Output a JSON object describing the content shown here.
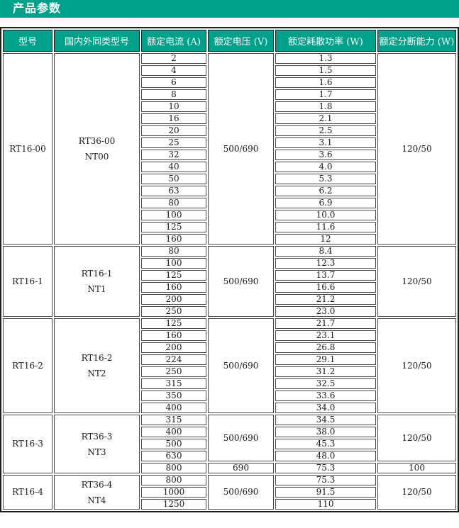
{
  "title": "产品参数",
  "colors": {
    "accent_teal": "#00a18a",
    "header_text": "#ffffff",
    "outer_border": "#1f1f1f",
    "cell_border": "#4a4a4a"
  },
  "table": {
    "headers": [
      "型号",
      "国内外同类型号",
      "额定电流 (A)",
      "额定电压 (V)",
      "额定耗散功率 (W)",
      "额定分断能力 (W)"
    ],
    "groups": [
      {
        "model": "RT16-00",
        "equivalent": [
          "RT36-00",
          "NT00"
        ],
        "rows": [
          {
            "current": "2",
            "power": "1.3"
          },
          {
            "current": "4",
            "power": "1.5"
          },
          {
            "current": "6",
            "power": "1.6"
          },
          {
            "current": "8",
            "power": "1.7"
          },
          {
            "current": "10",
            "power": "1.8"
          },
          {
            "current": "16",
            "power": "2.1"
          },
          {
            "current": "20",
            "power": "2.5"
          },
          {
            "current": "25",
            "power": "3.1"
          },
          {
            "current": "32",
            "power": "3.6"
          },
          {
            "current": "40",
            "power": "4.0"
          },
          {
            "current": "50",
            "power": "5.3"
          },
          {
            "current": "63",
            "power": "6.2"
          },
          {
            "current": "80",
            "power": "6.9"
          },
          {
            "current": "100",
            "power": "10.0"
          },
          {
            "current": "125",
            "power": "11.6"
          },
          {
            "current": "160",
            "power": "12"
          }
        ],
        "voltage_spans": [
          {
            "rows": 16,
            "value": "500/690"
          }
        ],
        "breaking_spans": [
          {
            "rows": 16,
            "value": "120/50"
          }
        ]
      },
      {
        "model": "RT16-1",
        "equivalent": [
          "RT16-1",
          "NT1"
        ],
        "rows": [
          {
            "current": "80",
            "power": "8.4"
          },
          {
            "current": "100",
            "power": "12.3"
          },
          {
            "current": "125",
            "power": "13.7"
          },
          {
            "current": "160",
            "power": "16.6"
          },
          {
            "current": "200",
            "power": "21.2"
          },
          {
            "current": "250",
            "power": "23.0"
          }
        ],
        "voltage_spans": [
          {
            "rows": 6,
            "value": "500/690"
          }
        ],
        "breaking_spans": [
          {
            "rows": 6,
            "value": "120/50"
          }
        ]
      },
      {
        "model": "RT16-2",
        "equivalent": [
          "RT16-2",
          "NT2"
        ],
        "rows": [
          {
            "current": "125",
            "power": "21.7"
          },
          {
            "current": "160",
            "power": "23.1"
          },
          {
            "current": "200",
            "power": "26.8"
          },
          {
            "current": "224",
            "power": "29.1"
          },
          {
            "current": "250",
            "power": "31.2"
          },
          {
            "current": "315",
            "power": "32.5"
          },
          {
            "current": "350",
            "power": "33.6"
          },
          {
            "current": "400",
            "power": "34.0"
          }
        ],
        "voltage_spans": [
          {
            "rows": 8,
            "value": "500/690"
          }
        ],
        "breaking_spans": [
          {
            "rows": 8,
            "value": "120/50"
          }
        ]
      },
      {
        "model": "RT16-3",
        "equivalent": [
          "RT36-3",
          "NT3"
        ],
        "rows": [
          {
            "current": "315",
            "power": "34.5"
          },
          {
            "current": "400",
            "power": "38.0"
          },
          {
            "current": "500",
            "power": "45.3"
          },
          {
            "current": "630",
            "power": "48.0"
          },
          {
            "current": "800",
            "power": "75.3"
          }
        ],
        "voltage_spans": [
          {
            "rows": 4,
            "value": "500/690"
          },
          {
            "rows": 1,
            "value": "690"
          }
        ],
        "breaking_spans": [
          {
            "rows": 4,
            "value": "120/50"
          },
          {
            "rows": 1,
            "value": "100"
          }
        ]
      },
      {
        "model": "RT16-4",
        "equivalent": [
          "RT36-4",
          "NT4"
        ],
        "rows": [
          {
            "current": "800",
            "power": "75.3"
          },
          {
            "current": "1000",
            "power": "91.5"
          },
          {
            "current": "1250",
            "power": "110"
          }
        ],
        "voltage_spans": [
          {
            "rows": 3,
            "value": "500/690"
          }
        ],
        "breaking_spans": [
          {
            "rows": 3,
            "value": "120/50"
          }
        ]
      }
    ]
  }
}
